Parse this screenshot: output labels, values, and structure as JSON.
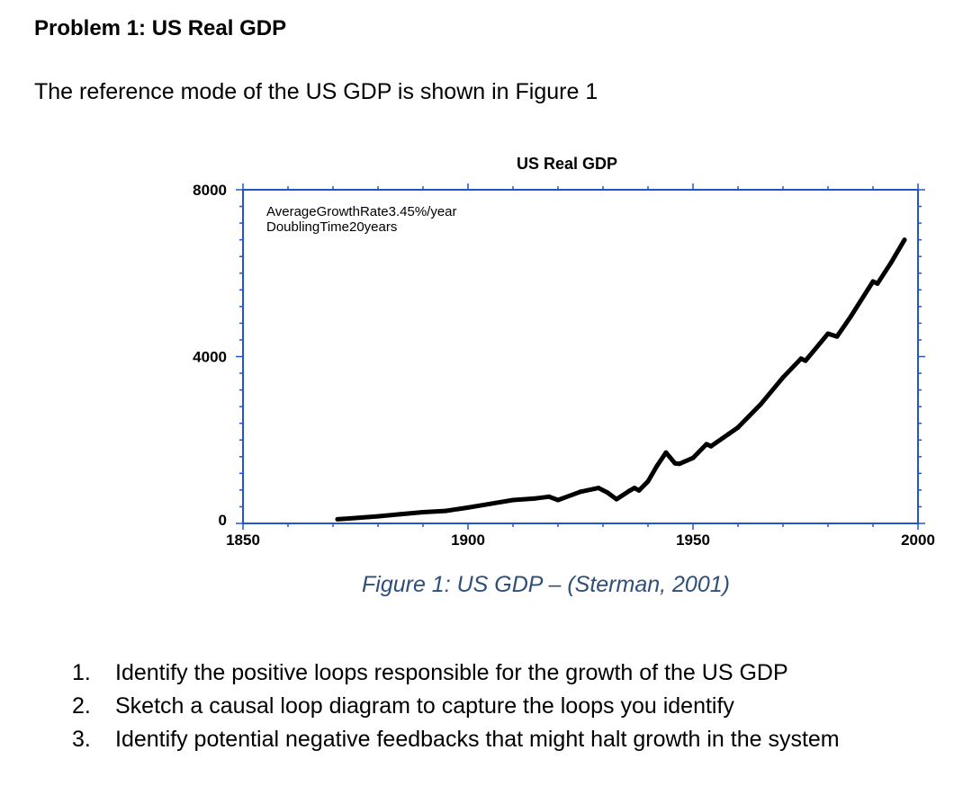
{
  "document": {
    "heading": "Problem 1: US Real GDP",
    "intro": "The reference mode of the US GDP is shown in Figure 1",
    "caption": "Figure 1: US GDP – (Sterman, 2001)",
    "questions": [
      {
        "num": "1.",
        "text": "Identify the positive loops responsible for the growth of the US GDP"
      },
      {
        "num": "2.",
        "text": "Sketch a causal loop diagram to capture the loops you identify"
      },
      {
        "num": "3.",
        "text": "Identify potential negative feedbacks that might halt growth in the system"
      }
    ]
  },
  "chart_data": {
    "type": "line",
    "title": "US Real GDP",
    "xlabel": "",
    "ylabel": "",
    "xlim": [
      1850,
      2000
    ],
    "ylim": [
      0,
      8000
    ],
    "xticks": [
      "1850",
      "1900",
      "1950",
      "2000"
    ],
    "yticks": [
      "0",
      "4000",
      "8000"
    ],
    "annotations": [
      "AverageGrowthRate3.45%/year",
      "DoublingTime20years"
    ],
    "colors": {
      "axis": "#2255cc",
      "line": "#000000"
    },
    "series": [
      {
        "name": "US Real GDP",
        "x": [
          1871,
          1880,
          1885,
          1890,
          1895,
          1900,
          1905,
          1910,
          1915,
          1918,
          1920,
          1925,
          1929,
          1931,
          1933,
          1936,
          1937,
          1938,
          1940,
          1942,
          1944,
          1946,
          1947,
          1950,
          1953,
          1954,
          1958,
          1960,
          1965,
          1970,
          1974,
          1975,
          1980,
          1982,
          1985,
          1990,
          1991,
          1994,
          1997
        ],
        "y": [
          100,
          170,
          220,
          270,
          300,
          380,
          470,
          560,
          600,
          640,
          560,
          760,
          850,
          740,
          580,
          790,
          850,
          790,
          1010,
          1380,
          1700,
          1440,
          1430,
          1570,
          1900,
          1850,
          2150,
          2300,
          2850,
          3500,
          3950,
          3900,
          4550,
          4480,
          4950,
          5800,
          5750,
          6250,
          6800
        ]
      }
    ]
  }
}
